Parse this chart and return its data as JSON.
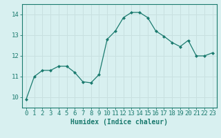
{
  "x": [
    0,
    1,
    2,
    3,
    4,
    5,
    6,
    7,
    8,
    9,
    10,
    11,
    12,
    13,
    14,
    15,
    16,
    17,
    18,
    19,
    20,
    21,
    22,
    23
  ],
  "y": [
    9.9,
    11.0,
    11.3,
    11.3,
    11.5,
    11.5,
    11.2,
    10.75,
    10.7,
    11.1,
    12.8,
    13.2,
    13.85,
    14.1,
    14.1,
    13.85,
    13.2,
    12.95,
    12.65,
    12.45,
    12.75,
    12.0,
    12.0,
    12.15
  ],
  "line_color": "#1a7a6e",
  "marker_color": "#1a7a6e",
  "bg_color": "#d8f0f0",
  "grid_color": "#c8e0e0",
  "xlabel": "Humidex (Indice chaleur)",
  "ylim": [
    9.5,
    14.5
  ],
  "xlim": [
    -0.5,
    23.5
  ],
  "yticks": [
    10,
    11,
    12,
    13,
    14
  ],
  "xticks": [
    0,
    1,
    2,
    3,
    4,
    5,
    6,
    7,
    8,
    9,
    10,
    11,
    12,
    13,
    14,
    15,
    16,
    17,
    18,
    19,
    20,
    21,
    22,
    23
  ],
  "tick_color": "#1a7a6e",
  "label_fontsize": 7,
  "tick_fontsize": 6.5
}
